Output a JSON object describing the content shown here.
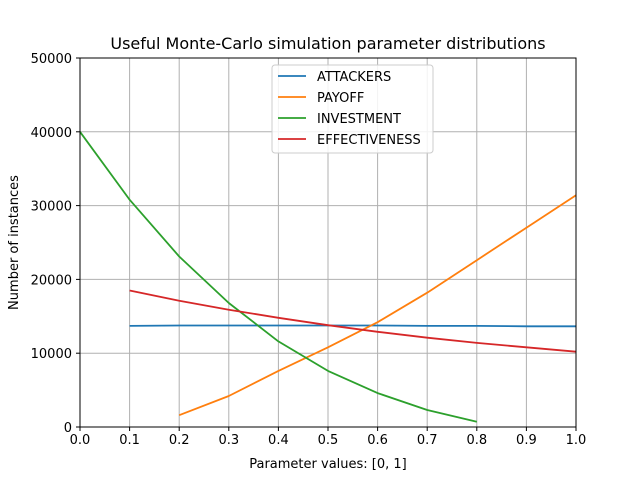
{
  "chart_data": {
    "type": "line",
    "title": "Useful Monte-Carlo simulation parameter distributions",
    "xlabel": "Parameter values: [0, 1]",
    "ylabel": "Number of instances",
    "xlim": [
      0,
      1
    ],
    "ylim": [
      0,
      50000
    ],
    "x_ticks": [
      "0.0",
      "0.1",
      "0.2",
      "0.3",
      "0.4",
      "0.5",
      "0.6",
      "0.7",
      "0.8",
      "0.9",
      "1.0"
    ],
    "y_ticks": [
      "0",
      "10000",
      "20000",
      "30000",
      "40000",
      "50000"
    ],
    "grid": true,
    "legend_position": "upper-center",
    "series": [
      {
        "name": "ATTACKERS",
        "color": "#1f77b4",
        "x": [
          0.1,
          0.2,
          0.3,
          0.4,
          0.5,
          0.6,
          0.7,
          0.8,
          0.9,
          1.0
        ],
        "y": [
          13700,
          13750,
          13750,
          13750,
          13750,
          13750,
          13700,
          13700,
          13650,
          13650
        ]
      },
      {
        "name": "PAYOFF",
        "color": "#ff7f0e",
        "x": [
          0.2,
          0.3,
          0.4,
          0.5,
          0.6,
          0.7,
          0.8,
          0.9,
          1.0
        ],
        "y": [
          1600,
          4200,
          7600,
          10800,
          14200,
          18200,
          22600,
          27000,
          31400
        ]
      },
      {
        "name": "INVESTMENT",
        "color": "#2ca02c",
        "x": [
          0.0,
          0.1,
          0.2,
          0.3,
          0.4,
          0.5,
          0.6,
          0.7,
          0.8
        ],
        "y": [
          40000,
          30800,
          23100,
          16800,
          11600,
          7600,
          4600,
          2300,
          700
        ]
      },
      {
        "name": "EFFECTIVENESS",
        "color": "#d62728",
        "x": [
          0.1,
          0.2,
          0.3,
          0.4,
          0.5,
          0.6,
          0.7,
          0.8,
          0.9,
          1.0
        ],
        "y": [
          18500,
          17100,
          15900,
          14800,
          13800,
          12900,
          12100,
          11400,
          10800,
          10200
        ]
      }
    ]
  }
}
